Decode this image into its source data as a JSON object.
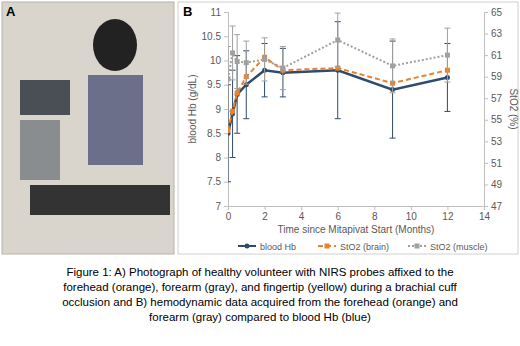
{
  "panel_labels": [
    "A",
    "B"
  ],
  "chart_data": {
    "type": "line",
    "x_label": "Time since Mitapivat Start (Months)",
    "y_label": "blood Hb (g/dL)",
    "y2_label": "StO2 (%)",
    "x": [
      0,
      0.25,
      0.5,
      1,
      2,
      3,
      6,
      9,
      12
    ],
    "xlim": [
      0,
      14
    ],
    "xticks": [
      0,
      2,
      4,
      6,
      8,
      10,
      12,
      14
    ],
    "ylim": [
      7,
      11
    ],
    "yticks": [
      7,
      7.5,
      8,
      8.5,
      9,
      9.5,
      10,
      10.5,
      11
    ],
    "y2lim": [
      47,
      65
    ],
    "y2ticks": [
      47,
      49,
      51,
      53,
      55,
      57,
      59,
      61,
      63,
      65
    ],
    "grid": false,
    "legend": "bottom",
    "series": [
      {
        "name": "blood Hb",
        "color": "#2f4b6e",
        "marker": "circle",
        "line_style": "solid",
        "values": [
          8.5,
          8.9,
          9.3,
          9.5,
          9.8,
          9.75,
          9.8,
          9.4,
          9.65
        ],
        "errors": [
          1.0,
          0.9,
          0.8,
          0.7,
          0.55,
          0.5,
          1.0,
          1.0,
          0.7
        ]
      },
      {
        "name": "StO2 (brain)",
        "color": "#e8822e",
        "marker": "square",
        "line_style": "dashed",
        "axis": "y2",
        "values": [
          54,
          55.8,
          57.5,
          59,
          60.8,
          59.6,
          59.8,
          58.4,
          59.6
        ]
      },
      {
        "name": "StO2 (muscle)",
        "color": "#a0a0a0",
        "marker": "square",
        "line_style": "dotted",
        "axis": "y2",
        "values": [
          58.8,
          61.2,
          60.4,
          60.3,
          60.6,
          59.8,
          62.4,
          60.0,
          61.0
        ],
        "errors": [
          3,
          2.5,
          2.5,
          2,
          2,
          2,
          2.5,
          2.5,
          2.5
        ]
      }
    ]
  },
  "caption": [
    "Figure 1: A) Photograph of healthy volunteer with NIRS probes affixed to the",
    "forehead (orange), forearm (gray), and fingertip (yellow) during a brachial cuff",
    "occlusion and B) hemodynamic data acquired from the forehead (orange) and",
    "forearm (gray) compared to blood Hb (blue)"
  ]
}
